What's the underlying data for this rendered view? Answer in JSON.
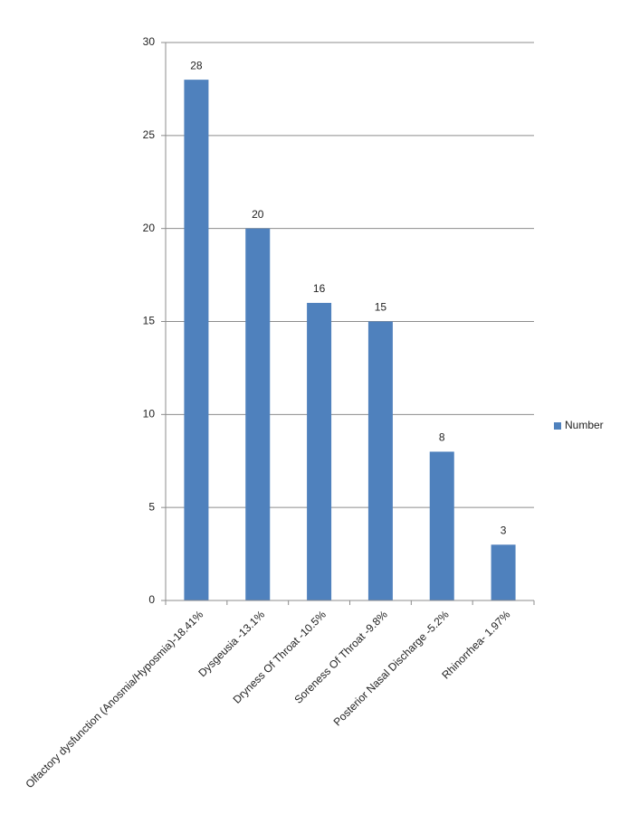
{
  "chart_data": {
    "type": "bar",
    "categories": [
      "Olfactory dysfunction (Anosmia/Hyposmia)-18.41%",
      "Dysgeusia -13.1%",
      "Dryness Of Throat -10.5%",
      "Soreness Of Throat -9.8%",
      "Posterior Nasal Discharge -5.2%",
      "Rhinorrhea- 1.97%"
    ],
    "series": [
      {
        "name": "Number",
        "color": "#4f81bd",
        "values": [
          28,
          20,
          16,
          15,
          8,
          3
        ]
      }
    ],
    "ylim": [
      0,
      30
    ],
    "yticks": [
      0,
      5,
      10,
      15,
      20,
      25,
      30
    ],
    "grid": true,
    "legend": "right"
  }
}
